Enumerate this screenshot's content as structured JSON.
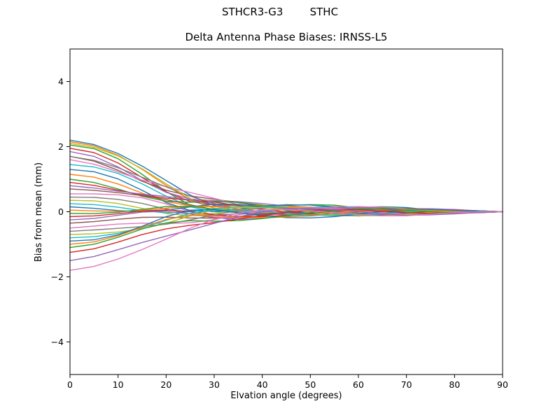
{
  "chart_data": {
    "type": "line",
    "suptitle": "STHCR3-G3        STHC",
    "title": "Delta Antenna Phase Biases: IRNSS-L5",
    "xlabel": "Elvation angle (degrees)",
    "ylabel": "Bias from mean (mm)",
    "xlim": [
      0,
      90
    ],
    "ylim": [
      -5,
      5
    ],
    "xticks": [
      0,
      10,
      20,
      30,
      40,
      50,
      60,
      70,
      80,
      90
    ],
    "yticks": [
      -4,
      -2,
      0,
      2,
      4
    ],
    "grid": false,
    "legend": "none",
    "background": "#ffffff",
    "frame_color": "#000000",
    "x_samples": [
      0,
      5,
      10,
      15,
      20,
      25,
      30,
      35,
      40,
      45,
      50,
      55,
      60,
      65,
      70,
      75,
      80,
      85,
      90
    ],
    "decay_profile": [
      1.0,
      0.93,
      0.78,
      0.58,
      0.38,
      0.22,
      0.13,
      0.08,
      0.05,
      0.04,
      0.03,
      0.03,
      0.02,
      0.02,
      0.02,
      0.01,
      0.01,
      0.005,
      0
    ],
    "wiggle_envelope": [
      0,
      0.15,
      0.35,
      0.6,
      0.85,
      1.0,
      1.0,
      0.9,
      0.8,
      0.7,
      0.65,
      0.6,
      0.55,
      0.5,
      0.45,
      0.35,
      0.25,
      0.12,
      0
    ],
    "wiggle_frequency_rad_per_deg": 0.12,
    "series": [
      {
        "color": "#1f77b4",
        "y0": 2.2,
        "amp": 0.22,
        "phase": 0.0
      },
      {
        "color": "#ff7f0e",
        "y0": 2.15,
        "amp": 0.18,
        "phase": 0.8
      },
      {
        "color": "#2ca02c",
        "y0": 2.05,
        "amp": 0.25,
        "phase": 1.6
      },
      {
        "color": "#d62728",
        "y0": 1.95,
        "amp": 0.15,
        "phase": 2.4
      },
      {
        "color": "#9467bd",
        "y0": 1.85,
        "amp": 0.2,
        "phase": 3.2
      },
      {
        "color": "#8c564b",
        "y0": 1.7,
        "amp": 0.17,
        "phase": 4.0
      },
      {
        "color": "#e377c2",
        "y0": 1.6,
        "amp": 0.24,
        "phase": 4.8
      },
      {
        "color": "#7f7f7f",
        "y0": 1.7,
        "amp": 0.14,
        "phase": 5.6
      },
      {
        "color": "#bcbd22",
        "y0": 2.1,
        "amp": 0.21,
        "phase": 0.4
      },
      {
        "color": "#17becf",
        "y0": 1.45,
        "amp": 0.19,
        "phase": 1.2
      },
      {
        "color": "#1f77b4",
        "y0": 1.3,
        "amp": 0.26,
        "phase": 2.0
      },
      {
        "color": "#ff7f0e",
        "y0": 1.15,
        "amp": 0.16,
        "phase": 2.8
      },
      {
        "color": "#2ca02c",
        "y0": 1.0,
        "amp": 0.23,
        "phase": 3.6
      },
      {
        "color": "#d62728",
        "y0": 0.9,
        "amp": 0.18,
        "phase": 4.4
      },
      {
        "color": "#9467bd",
        "y0": 0.8,
        "amp": 0.2,
        "phase": 5.2
      },
      {
        "color": "#8c564b",
        "y0": 0.7,
        "amp": 0.15,
        "phase": 6.0
      },
      {
        "color": "#e377c2",
        "y0": 0.55,
        "amp": 0.27,
        "phase": 0.6
      },
      {
        "color": "#7f7f7f",
        "y0": 0.45,
        "amp": 0.17,
        "phase": 1.4
      },
      {
        "color": "#bcbd22",
        "y0": 0.35,
        "amp": 0.22,
        "phase": 2.2
      },
      {
        "color": "#17becf",
        "y0": 0.25,
        "amp": 0.19,
        "phase": 3.0
      },
      {
        "color": "#1f77b4",
        "y0": 0.15,
        "amp": 0.24,
        "phase": 3.8
      },
      {
        "color": "#ff7f0e",
        "y0": 0.05,
        "amp": 0.16,
        "phase": 4.6
      },
      {
        "color": "#2ca02c",
        "y0": -0.05,
        "amp": 0.21,
        "phase": 5.4
      },
      {
        "color": "#d62728",
        "y0": -0.15,
        "amp": 0.18,
        "phase": 6.2
      },
      {
        "color": "#9467bd",
        "y0": -0.25,
        "amp": 0.25,
        "phase": 0.2
      },
      {
        "color": "#8c564b",
        "y0": -0.35,
        "amp": 0.15,
        "phase": 1.0
      },
      {
        "color": "#e377c2",
        "y0": -0.5,
        "amp": 0.23,
        "phase": 1.8
      },
      {
        "color": "#7f7f7f",
        "y0": -0.6,
        "amp": 0.19,
        "phase": 2.6
      },
      {
        "color": "#bcbd22",
        "y0": -0.7,
        "amp": 0.22,
        "phase": 3.4
      },
      {
        "color": "#17becf",
        "y0": -0.8,
        "amp": 0.16,
        "phase": 4.2
      },
      {
        "color": "#1f77b4",
        "y0": -0.9,
        "amp": 0.25,
        "phase": 5.0
      },
      {
        "color": "#ff7f0e",
        "y0": -1.0,
        "amp": 0.18,
        "phase": 5.8
      },
      {
        "color": "#2ca02c",
        "y0": -1.1,
        "amp": 0.21,
        "phase": 0.3
      },
      {
        "color": "#d62728",
        "y0": -1.25,
        "amp": 0.17,
        "phase": 1.1
      },
      {
        "color": "#9467bd",
        "y0": -1.5,
        "amp": 0.23,
        "phase": 1.9
      },
      {
        "color": "#e377c2",
        "y0": -1.8,
        "amp": 0.2,
        "phase": 2.7
      }
    ]
  }
}
